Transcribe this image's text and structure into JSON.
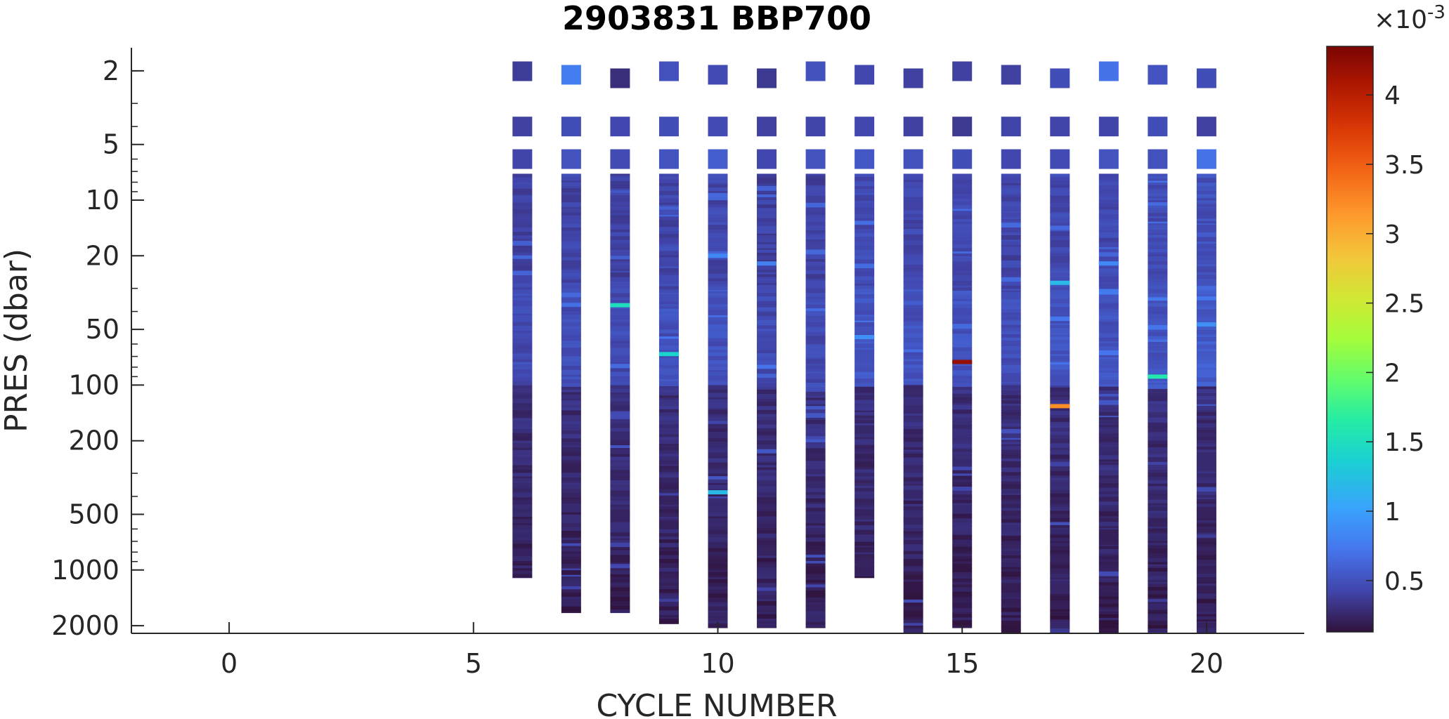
{
  "chart_data": {
    "type": "heatmap",
    "title": "2903831 BBP700",
    "xlabel": "CYCLE NUMBER",
    "ylabel": "PRES (dbar)",
    "xlim": [
      -2,
      22
    ],
    "ylim": [
      1.5,
      2200
    ],
    "yscale": "log",
    "y_reversed": true,
    "xticks": [
      0,
      5,
      10,
      15,
      20
    ],
    "yticks": [
      2,
      5,
      10,
      20,
      50,
      100,
      200,
      500,
      1000,
      2000
    ],
    "grid": false,
    "colormap": "turbo",
    "colorbar": {
      "range": [
        0.00013,
        0.00435
      ],
      "ticks": [
        0.5,
        1,
        1.5,
        2,
        2.5,
        3,
        3.5,
        4
      ],
      "exponent_label": "×10",
      "exponent": "-3"
    },
    "profiles": [
      {
        "cycle": 6,
        "max_pres": 1100,
        "surface": [
          0.00038,
          0.0004,
          0.00042
        ],
        "base": 0.0004
      },
      {
        "cycle": 7,
        "max_pres": 1700,
        "surface": [
          0.00078,
          0.00048,
          0.00052
        ],
        "base": 0.00042
      },
      {
        "cycle": 8,
        "max_pres": 1700,
        "surface": [
          0.0003,
          0.00044,
          0.00046
        ],
        "base": 0.0004
      },
      {
        "cycle": 9,
        "max_pres": 1950,
        "surface": [
          0.0005,
          0.00048,
          0.00052
        ],
        "base": 0.00043
      },
      {
        "cycle": 10,
        "max_pres": 2050,
        "surface": [
          0.00046,
          0.00046,
          0.00058
        ],
        "base": 0.00044
      },
      {
        "cycle": 11,
        "max_pres": 2050,
        "surface": [
          0.00036,
          0.0004,
          0.00044
        ],
        "base": 0.0004
      },
      {
        "cycle": 12,
        "max_pres": 2050,
        "surface": [
          0.0005,
          0.00042,
          0.00052
        ],
        "base": 0.0004
      },
      {
        "cycle": 13,
        "max_pres": 1100,
        "surface": [
          0.00044,
          0.00044,
          0.00054
        ],
        "base": 0.00046
      },
      {
        "cycle": 14,
        "max_pres": 2200,
        "surface": [
          0.0004,
          0.0004,
          0.0005
        ],
        "base": 0.00044
      },
      {
        "cycle": 15,
        "max_pres": 2050,
        "surface": [
          0.0004,
          0.00036,
          0.00048
        ],
        "base": 0.00045
      },
      {
        "cycle": 16,
        "max_pres": 2200,
        "surface": [
          0.0004,
          0.00042,
          0.00044
        ],
        "base": 0.00042
      },
      {
        "cycle": 17,
        "max_pres": 2200,
        "surface": [
          0.00048,
          0.00042,
          0.00046
        ],
        "base": 0.00045
      },
      {
        "cycle": 18,
        "max_pres": 2200,
        "surface": [
          0.0007,
          0.00042,
          0.00052
        ],
        "base": 0.00045
      },
      {
        "cycle": 19,
        "max_pres": 2200,
        "surface": [
          0.00052,
          0.00048,
          0.0005
        ],
        "base": 0.00046
      },
      {
        "cycle": 20,
        "max_pres": 2200,
        "surface": [
          0.00048,
          0.0004,
          0.0007
        ],
        "base": 0.0005
      }
    ],
    "surface_pressures": [
      2.1,
      4.0,
      6.0
    ],
    "highlights": [
      {
        "cycle": 8,
        "pres": 37,
        "value": 0.0015
      },
      {
        "cycle": 9,
        "pres": 68,
        "value": 0.0014
      },
      {
        "cycle": 10,
        "pres": 20,
        "value": 0.00085
      },
      {
        "cycle": 10,
        "pres": 380,
        "value": 0.0012
      },
      {
        "cycle": 11,
        "pres": 22,
        "value": 0.0008
      },
      {
        "cycle": 13,
        "pres": 55,
        "value": 0.0009
      },
      {
        "cycle": 15,
        "pres": 75,
        "value": 0.0042
      },
      {
        "cycle": 17,
        "pres": 28,
        "value": 0.0012
      },
      {
        "cycle": 17,
        "pres": 130,
        "value": 0.0032
      },
      {
        "cycle": 18,
        "pres": 22,
        "value": 0.00085
      },
      {
        "cycle": 19,
        "pres": 90,
        "value": 0.0016
      },
      {
        "cycle": 20,
        "pres": 47,
        "value": 0.0009
      }
    ]
  }
}
